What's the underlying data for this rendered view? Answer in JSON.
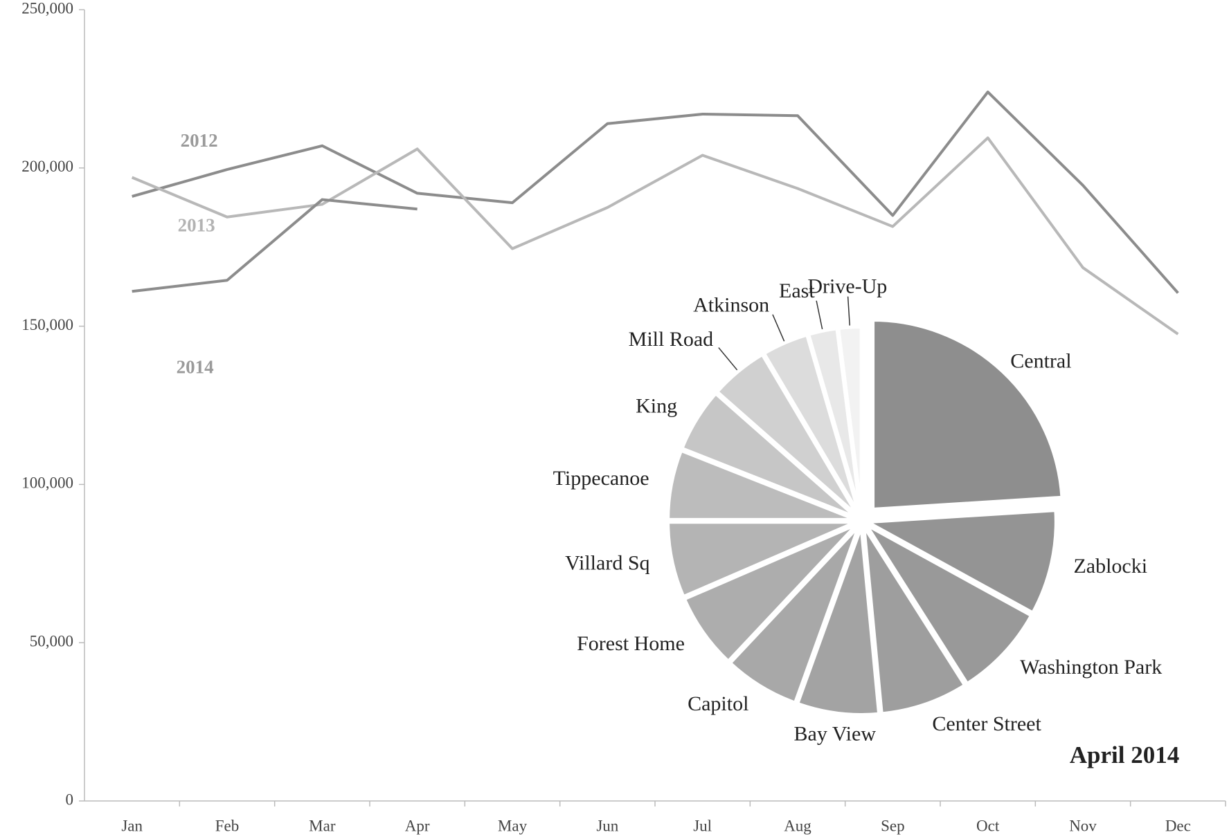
{
  "chart_data": [
    {
      "type": "line",
      "categories": [
        "Jan",
        "Feb",
        "Mar",
        "Apr",
        "May",
        "Jun",
        "Jul",
        "Aug",
        "Sep",
        "Oct",
        "Nov",
        "Dec"
      ],
      "series": [
        {
          "name": "2012",
          "color": "#8c8c8c",
          "values": [
            191000,
            199500,
            207000,
            192000,
            189000,
            214000,
            217000,
            216500,
            185000,
            224000,
            194500,
            160500
          ]
        },
        {
          "name": "2013",
          "color": "#b8b8b8",
          "values": [
            197000,
            184500,
            188500,
            206000,
            174500,
            187500,
            204000,
            193500,
            181500,
            209500,
            168500,
            147500
          ]
        },
        {
          "name": "2014",
          "color": "#8c8c8c",
          "values": [
            161000,
            164500,
            190000,
            187000,
            null,
            null,
            null,
            null,
            null,
            null,
            null,
            null
          ]
        }
      ],
      "ylim": [
        0,
        250000
      ],
      "yticks": [
        {
          "value": 0,
          "label": "0"
        },
        {
          "value": 50000,
          "label": "50,000"
        },
        {
          "value": 100000,
          "label": "100,000"
        },
        {
          "value": 150000,
          "label": "150,000"
        },
        {
          "value": 200000,
          "label": "200,000"
        },
        {
          "value": 250000,
          "label": "250,000"
        }
      ],
      "grid": false
    },
    {
      "type": "pie",
      "title": "April 2014",
      "categories": [
        "Central",
        "Zablocki",
        "Washington Park",
        "Center Street",
        "Bay View",
        "Capitol",
        "Forest Home",
        "Villard Sq",
        "Tippecanoe",
        "King",
        "Mill Road",
        "Atkinson",
        "East",
        "Drive-Up"
      ],
      "values": [
        24,
        9,
        8,
        7.5,
        7,
        6.5,
        6.5,
        6.5,
        6,
        5.5,
        5,
        4,
        2.5,
        2
      ],
      "colors": [
        "#8e8e8e",
        "#949494",
        "#999999",
        "#9e9e9e",
        "#a3a3a3",
        "#a8a8a8",
        "#adadad",
        "#b4b4b4",
        "#bcbcbc",
        "#c6c6c6",
        "#d0d0d0",
        "#dcdcdc",
        "#e8e8e8",
        "#f2f2f2"
      ]
    }
  ]
}
